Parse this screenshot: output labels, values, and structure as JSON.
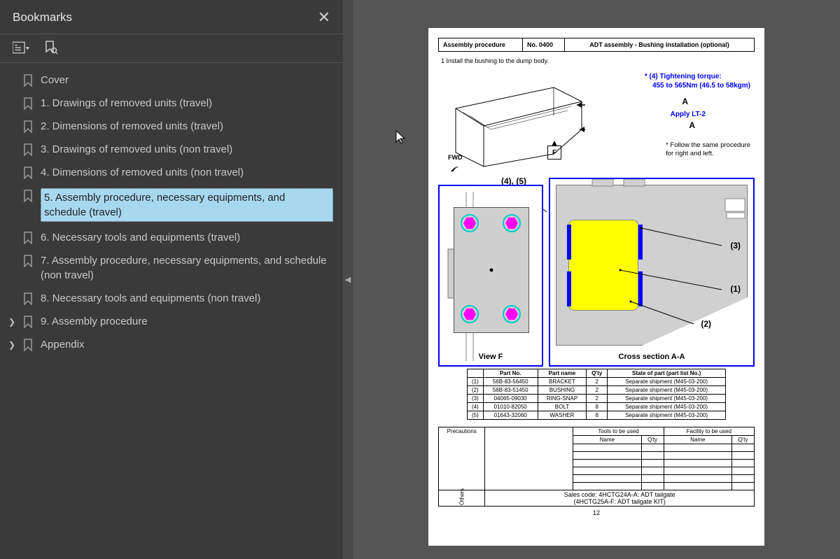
{
  "sidebar": {
    "title": "Bookmarks",
    "items": [
      {
        "label": "Cover",
        "expandable": false
      },
      {
        "label": "1. Drawings of removed units (travel)",
        "expandable": false
      },
      {
        "label": "2. Dimensions of removed units (travel)",
        "expandable": false
      },
      {
        "label": "3. Drawings of removed units (non travel)",
        "expandable": false
      },
      {
        "label": "4. Dimensions of removed units (non travel)",
        "expandable": false
      },
      {
        "label": "5. Assembly procedure, necessary equipments, and schedule (travel)",
        "expandable": false,
        "selected": true
      },
      {
        "label": "6. Necessary tools and equipments (travel)",
        "expandable": false
      },
      {
        "label": "7. Assembly procedure, necessary equipments, and schedule (non travel)",
        "expandable": false
      },
      {
        "label": "8. Necessary tools and equipments (non travel)",
        "expandable": false
      },
      {
        "label": "9. Assembly procedure",
        "expandable": true
      },
      {
        "label": "Appendix",
        "expandable": true
      }
    ]
  },
  "doc": {
    "header": {
      "ap": "Assembly procedure",
      "no": "No. 0400",
      "title": "ADT assembly - Bushing installation (optional)"
    },
    "step1": "1  Install the bushing to the dump body.",
    "torque_l1": "* (4) Tightening torque:",
    "torque_l2": "455 to 565Nm (46.5 to 58kgm)",
    "apply": "Apply LT-2",
    "follow_l1": "* Follow the same procedure",
    "follow_l2": "for right and left.",
    "A": "A",
    "fwd": "FWD",
    "F": "F",
    "label45": "(4), (5)",
    "viewF": "View F",
    "cross": "Cross section A-A",
    "c1": "(1)",
    "c2": "(2)",
    "c3": "(3)",
    "parts": {
      "headers": [
        "",
        "Part No.",
        "Part name",
        "Q'ty",
        "State of part (part list No.)"
      ],
      "rows": [
        [
          "(1)",
          "56B-83-56450",
          "BRACKET",
          "2",
          "Separate shipment (M45-03-200)"
        ],
        [
          "(2)",
          "56B-83-51450",
          "BUSHING",
          "2",
          "Separate shipment (M45-03-200)"
        ],
        [
          "(3)",
          "04065-09030",
          "RING-SNAP",
          "2",
          "Separate shipment (M45-03-200)"
        ],
        [
          "(4)",
          "01010-82050",
          "BOLT",
          "8",
          "Separate shipment (M45-03-200)"
        ],
        [
          "(5)",
          "01643-32060",
          "WASHER",
          "8",
          "Separate shipment (M45-03-200)"
        ]
      ]
    },
    "bottom": {
      "precautions": "Precautions",
      "tools": "Tools to be used",
      "facility": "Facility to be used",
      "name": "Name",
      "qty": "Q'ty",
      "others": "Others",
      "sales_l1": "Sales code: 4HCTG24A-A: ADT tailgate",
      "sales_l2": "(4HCTG25A-F: ADT tailgate  KIT)"
    },
    "page": "12",
    "colors": {
      "blue": "#0000ff",
      "yellow": "#ffff00",
      "magenta": "#ff00ff",
      "cyan": "#00cccc",
      "grey": "#cfcfcf"
    }
  }
}
